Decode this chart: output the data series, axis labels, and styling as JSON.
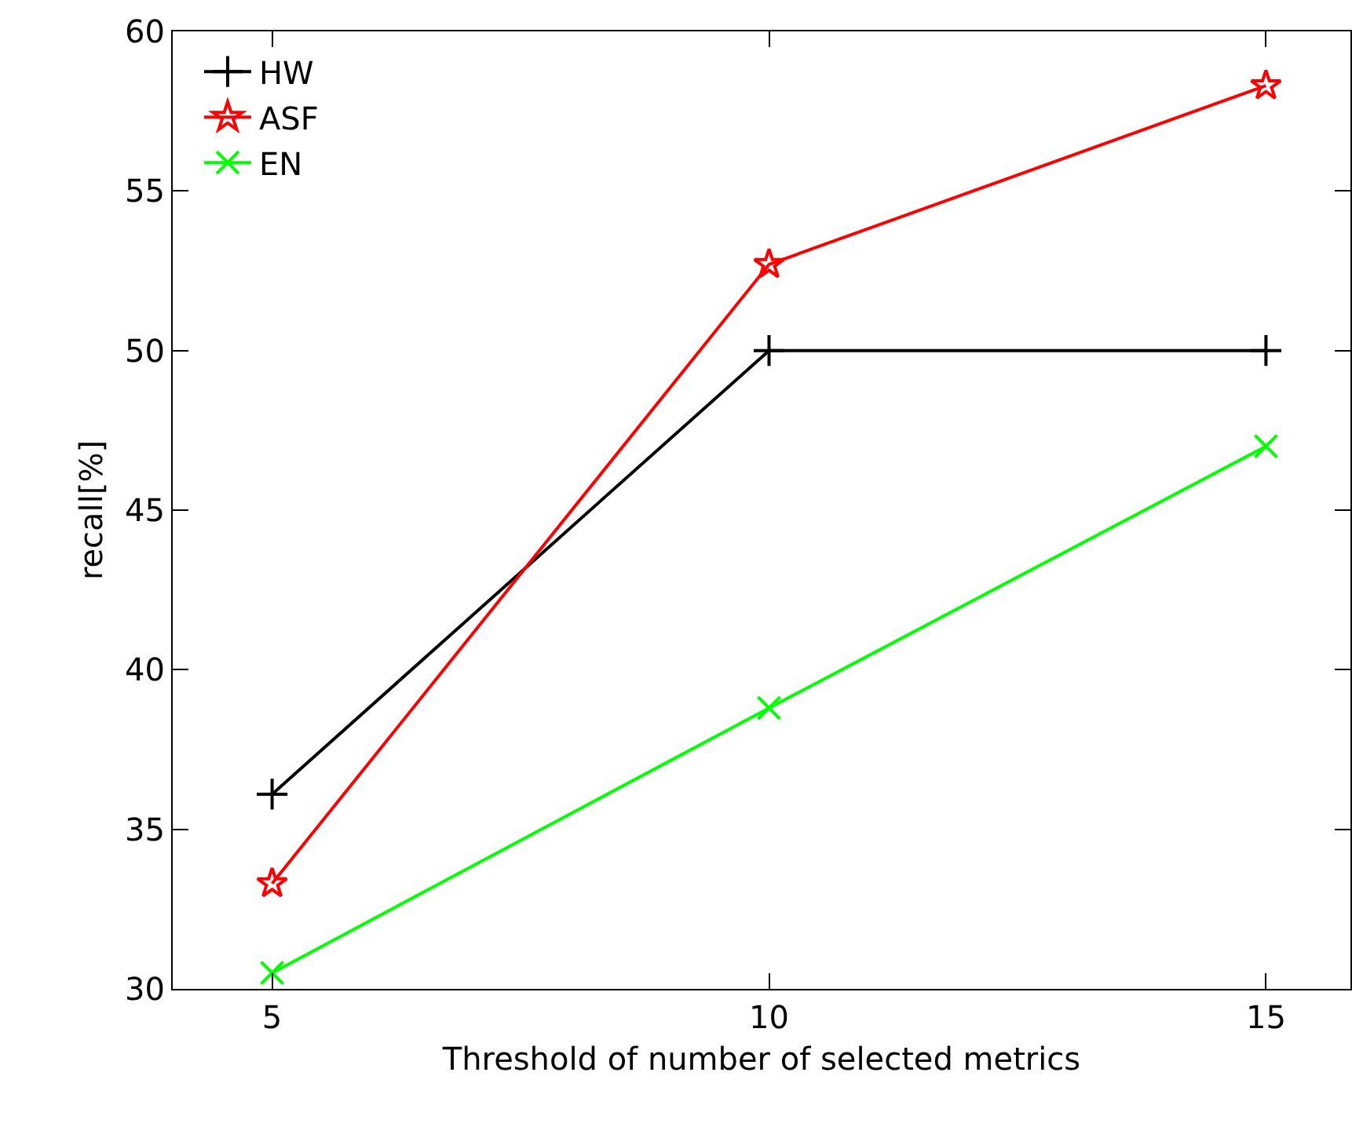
{
  "chart_data": {
    "type": "line",
    "xlabel": "Threshold of number of selected metrics",
    "ylabel": "recall[%]",
    "x": [
      5,
      10,
      15
    ],
    "xlim": [
      4,
      15.85
    ],
    "xticks": [
      5,
      10,
      15
    ],
    "ylim": [
      30,
      60
    ],
    "yticks": [
      30,
      35,
      40,
      45,
      50,
      55,
      60
    ],
    "legend": "top left",
    "line_style": "solid",
    "series": [
      {
        "name": "HW",
        "color": "#000000",
        "marker": "cross",
        "values": [
          36.1,
          50,
          50
        ]
      },
      {
        "name": "ASF",
        "color": "#ff0000",
        "marker": "star",
        "values": [
          33.3,
          52.7,
          58.3
        ]
      },
      {
        "name": "EN",
        "color": "#00ff00",
        "marker": "x",
        "values": [
          30.5,
          38.8,
          47
        ]
      }
    ]
  }
}
